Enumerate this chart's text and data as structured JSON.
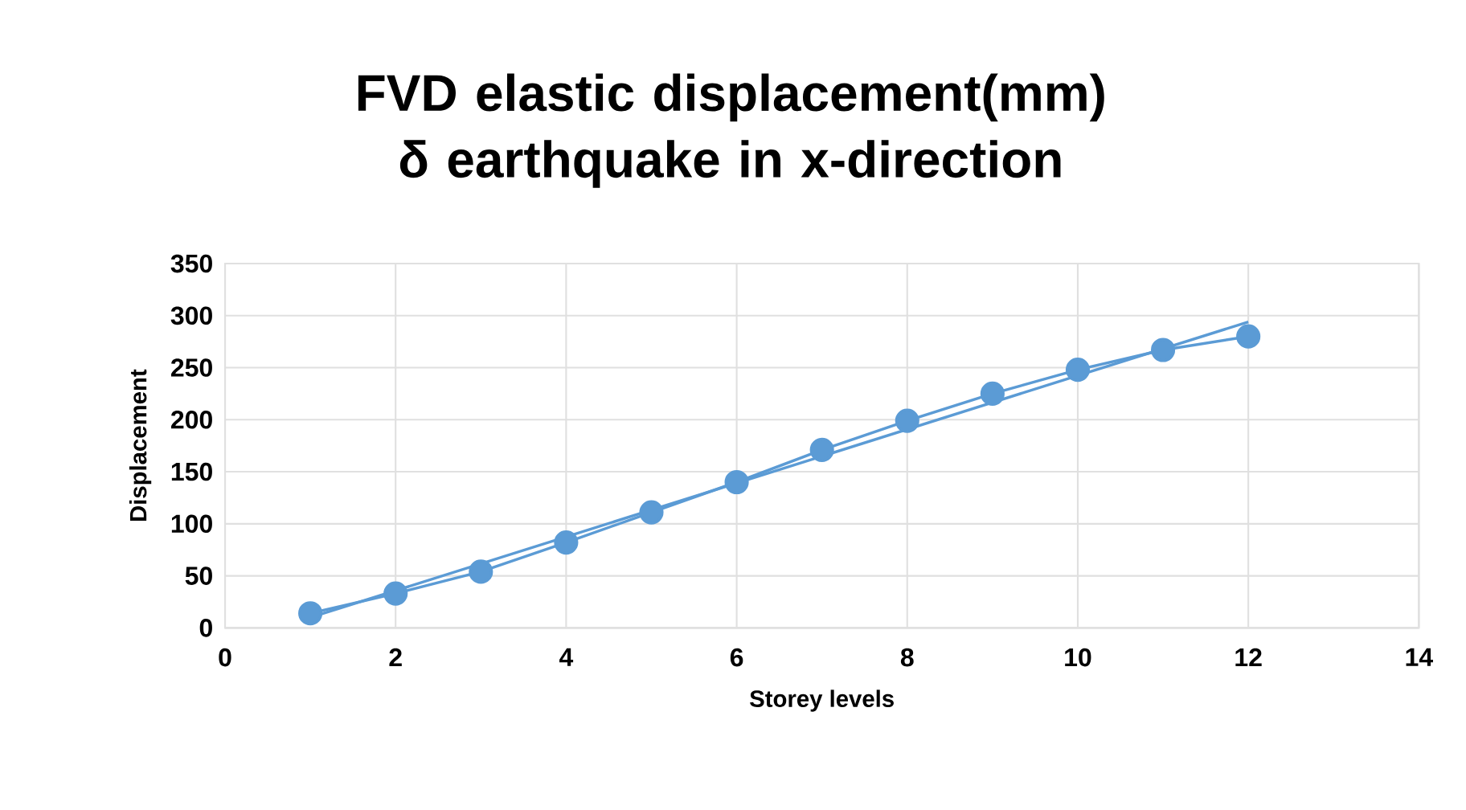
{
  "chart_data": {
    "type": "line",
    "title": "FVD elastic displacement(mm) δ earthquake in x-direction",
    "xlabel": "Storey levels",
    "ylabel": "Displacement",
    "series": [
      {
        "color": "#5b9bd5",
        "marker": "circle",
        "x": [
          1,
          2,
          3,
          4,
          5,
          6,
          7,
          8,
          9,
          10,
          11,
          12
        ],
        "values": [
          14,
          33,
          54,
          82,
          111,
          140,
          171,
          199,
          225,
          248,
          267,
          280
        ]
      },
      {
        "color": "#5b9bd5",
        "marker": "none",
        "x": [
          1,
          12
        ],
        "values": [
          10,
          294
        ]
      }
    ],
    "xlim": [
      0,
      14
    ],
    "xticks": [
      0,
      2,
      4,
      6,
      8,
      10,
      12,
      14
    ],
    "ylim": [
      0,
      350
    ],
    "yticks": [
      0,
      50,
      100,
      150,
      200,
      250,
      300,
      350
    ],
    "grid": true
  }
}
